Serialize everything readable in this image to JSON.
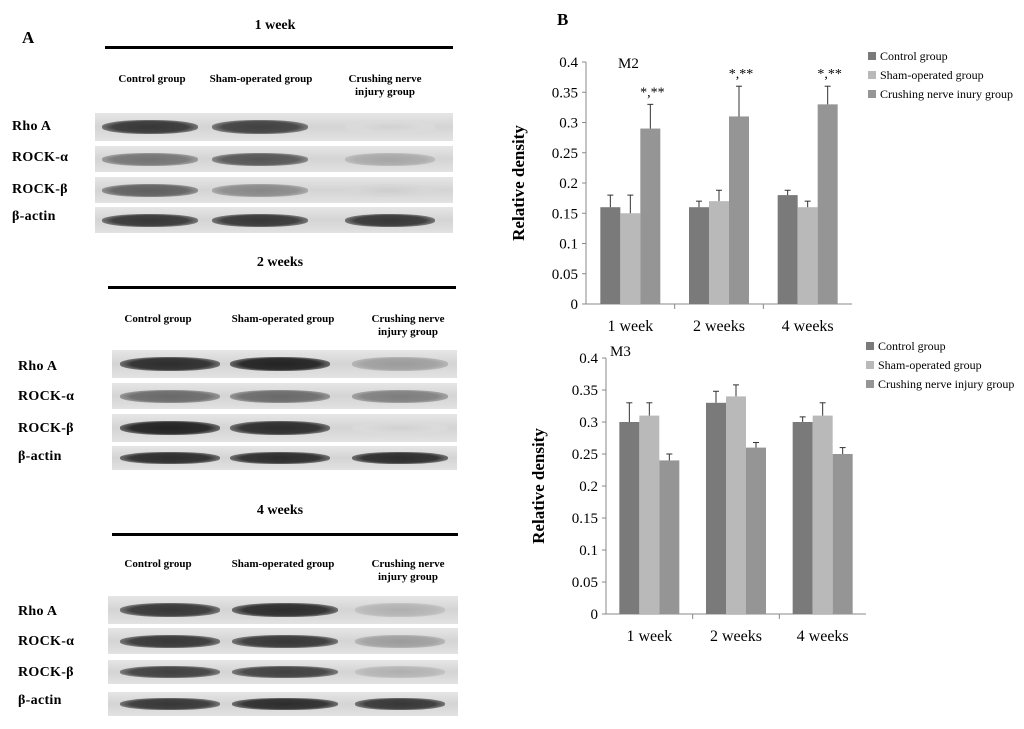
{
  "panelA": {
    "letter": "A",
    "sections": [
      {
        "title": "1 week",
        "columns": [
          "Control group",
          "Sham-operated group",
          "Crushing nerve injury group"
        ],
        "rows": [
          {
            "label": "Rho A",
            "levels": [
              0.85,
              0.8,
              0.08
            ]
          },
          {
            "label": "ROCK-α",
            "levels": [
              0.55,
              0.7,
              0.3
            ]
          },
          {
            "label": "ROCK-β",
            "levels": [
              0.65,
              0.45,
              0.1
            ]
          },
          {
            "label": "β-actin",
            "levels": [
              0.85,
              0.85,
              0.85
            ]
          }
        ]
      },
      {
        "title": "2 weeks",
        "columns": [
          "Control group",
          "Sham-operated group",
          "Crushing nerve injury group"
        ],
        "rows": [
          {
            "label": "Rho A",
            "levels": [
              0.9,
              0.95,
              0.35
            ]
          },
          {
            "label": "ROCK-α",
            "levels": [
              0.6,
              0.6,
              0.5
            ]
          },
          {
            "label": "ROCK-β",
            "levels": [
              0.95,
              0.9,
              0.08
            ]
          },
          {
            "label": "β-actin",
            "levels": [
              0.9,
              0.9,
              0.9
            ]
          }
        ]
      },
      {
        "title": "4 weeks",
        "columns": [
          "Control group",
          "Sham-operated group",
          "Crushing nerve injury group"
        ],
        "rows": [
          {
            "label": "Rho A",
            "levels": [
              0.85,
              0.9,
              0.25
            ]
          },
          {
            "label": "ROCK-α",
            "levels": [
              0.85,
              0.85,
              0.35
            ]
          },
          {
            "label": "ROCK-β",
            "levels": [
              0.8,
              0.8,
              0.25
            ]
          },
          {
            "label": "β-actin",
            "levels": [
              0.85,
              0.9,
              0.85
            ]
          }
        ]
      }
    ]
  },
  "panelB": {
    "letter": "B"
  },
  "colors": {
    "control": "#7a7a7a",
    "sham": "#b9b9b9",
    "crush": "#959595",
    "errorbar": "#333333"
  },
  "chart_data": [
    {
      "type": "bar",
      "title": "M2",
      "ylabel": "Relative density",
      "categories": [
        "1 week",
        "2 weeks",
        "4 weeks"
      ],
      "ylim": [
        0,
        0.4
      ],
      "yticks": [
        "0",
        "0.05",
        "0.1",
        "0.15",
        "0.2",
        "0.25",
        "0.3",
        "0.35",
        "0.4"
      ],
      "series": [
        {
          "name": "Control group",
          "values": [
            0.16,
            0.16,
            0.18
          ],
          "errors": [
            0.02,
            0.01,
            0.008
          ]
        },
        {
          "name": "Sham-operated group",
          "values": [
            0.15,
            0.17,
            0.16
          ],
          "errors": [
            0.03,
            0.018,
            0.01
          ]
        },
        {
          "name": "Crushing nerve inury group",
          "values": [
            0.29,
            0.31,
            0.33
          ],
          "errors": [
            0.04,
            0.05,
            0.03
          ]
        }
      ],
      "annotations": [
        "*,**",
        "*,**",
        "*,**"
      ],
      "legend": "top-right"
    },
    {
      "type": "bar",
      "title": "M3",
      "ylabel": "Relative density",
      "categories": [
        "1 week",
        "2 weeks",
        "4 weeks"
      ],
      "ylim": [
        0,
        0.4
      ],
      "yticks": [
        "0",
        "0.05",
        "0.1",
        "0.15",
        "0.2",
        "0.25",
        "0.3",
        "0.35",
        "0.4"
      ],
      "series": [
        {
          "name": "Control group",
          "values": [
            0.3,
            0.33,
            0.3
          ],
          "errors": [
            0.03,
            0.018,
            0.008
          ]
        },
        {
          "name": "Sham-operated group",
          "values": [
            0.31,
            0.34,
            0.31
          ],
          "errors": [
            0.02,
            0.018,
            0.02
          ]
        },
        {
          "name": "Crushing nerve injury group",
          "values": [
            0.24,
            0.26,
            0.25
          ],
          "errors": [
            0.01,
            0.008,
            0.01
          ]
        }
      ],
      "annotations": [],
      "legend": "top-right"
    }
  ]
}
